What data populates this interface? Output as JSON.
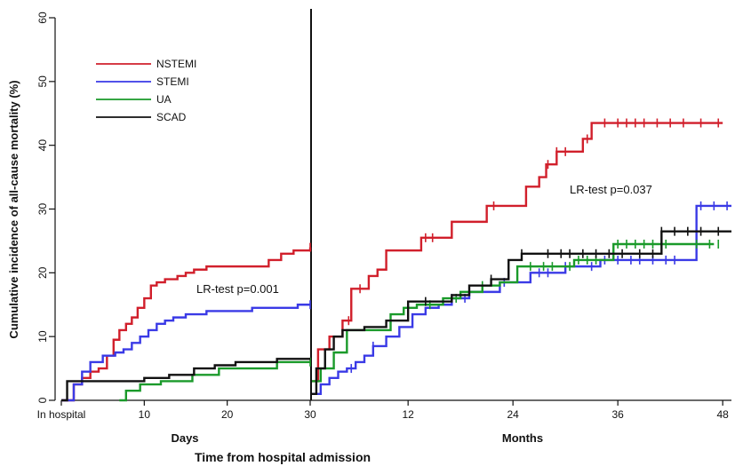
{
  "chart_data": {
    "type": "line",
    "ylabel": "Cumulative incidence of all-cause mortality (%)",
    "xlabel": "Time from hospital admission",
    "ylim": [
      0,
      60
    ],
    "y_ticks": [
      0,
      10,
      20,
      30,
      40,
      50,
      60
    ],
    "grid": false,
    "legend_position": "top-left",
    "left_panel": {
      "xlabel": "Days",
      "xlim": [
        0,
        30
      ],
      "x_ticks": [
        0,
        10,
        20,
        30
      ],
      "x_tick_labels": [
        "In hospital",
        "10",
        "20",
        "30"
      ],
      "annotation": "LR-test p=0.001"
    },
    "right_panel": {
      "xlabel": "Months",
      "xlim": [
        1,
        49
      ],
      "x_ticks": [
        12,
        24,
        36,
        48
      ],
      "x_tick_labels": [
        "12",
        "24",
        "36",
        "48"
      ],
      "annotation": "LR-test p=0.037"
    },
    "series": [
      {
        "name": "NSTEMI",
        "color": "#d11f2b",
        "left": {
          "x": [
            0,
            1.5,
            2.5,
            3.5,
            4.5,
            5.5,
            6.3,
            7.0,
            7.8,
            8.5,
            9.2,
            10.0,
            10.8,
            11.5,
            12.5,
            14.0,
            15.0,
            16.0,
            17.5,
            20.0,
            25.0,
            26.5,
            28.0,
            30.0
          ],
          "y": [
            0,
            2.5,
            3.5,
            4.5,
            5.0,
            7.0,
            9.5,
            11.0,
            12.0,
            13.0,
            14.5,
            16.0,
            18.0,
            18.5,
            19.0,
            19.5,
            20.0,
            20.5,
            21.0,
            21.0,
            22.0,
            23.0,
            23.5,
            24.0
          ],
          "censored_x": [
            30.0
          ]
        },
        "right": {
          "x": [
            1.0,
            1.7,
            3.0,
            4.5,
            5.5,
            6.0,
            7.5,
            8.5,
            9.5,
            10.5,
            12.0,
            13.5,
            15.5,
            17.0,
            19.0,
            21.0,
            23.0,
            25.5,
            27.0,
            27.8,
            29.0,
            30.5,
            32.0,
            33.0,
            48.0
          ],
          "y": [
            3.0,
            8.0,
            10.0,
            12.5,
            17.5,
            17.5,
            19.5,
            20.5,
            23.5,
            23.5,
            23.5,
            25.5,
            25.5,
            28.0,
            28.0,
            30.5,
            30.5,
            33.5,
            35.0,
            37.0,
            39.0,
            39.0,
            41.0,
            43.5,
            43.5
          ],
          "censored_x": [
            5.2,
            6.5,
            14.0,
            14.8,
            21.8,
            28.0,
            29.0,
            30.0,
            32.5,
            34.5,
            36.0,
            37.0,
            38.0,
            39.0,
            40.5,
            42.0,
            43.5,
            45.5,
            47.5
          ]
        }
      },
      {
        "name": "STEMI",
        "color": "#3a3ae6",
        "left": {
          "x": [
            0,
            1.5,
            2.5,
            3.5,
            5.0,
            6.5,
            7.5,
            8.5,
            9.5,
            10.5,
            11.5,
            12.5,
            13.5,
            15.0,
            17.5,
            20.5,
            23.0,
            26.0,
            28.5,
            30.0
          ],
          "y": [
            0,
            2.5,
            4.5,
            6.0,
            7.0,
            7.5,
            8.0,
            9.0,
            10.0,
            11.0,
            12.0,
            12.5,
            13.0,
            13.5,
            14.0,
            14.0,
            14.5,
            14.5,
            15.0,
            15.0
          ],
          "censored_x": [
            30.0
          ]
        },
        "right": {
          "x": [
            1.0,
            2.0,
            3.0,
            4.0,
            5.0,
            6.0,
            7.0,
            8.0,
            9.5,
            11.0,
            12.5,
            14.0,
            15.5,
            17.0,
            19.0,
            22.5,
            26.0,
            30.0,
            34.0,
            38.0,
            41.0,
            44.5,
            45.0,
            49.0
          ],
          "y": [
            1.0,
            2.5,
            3.5,
            4.5,
            5.0,
            6.0,
            7.0,
            8.5,
            10.0,
            11.5,
            13.5,
            14.5,
            15.0,
            16.0,
            17.0,
            18.5,
            20.0,
            21.0,
            22.0,
            22.0,
            22.0,
            22.0,
            30.5,
            30.5
          ],
          "censored_x": [
            5.5,
            8.0,
            17.0,
            18.5,
            23.0,
            27.0,
            28.0,
            30.0,
            33.0,
            34.5,
            36.0,
            37.5,
            38.5,
            40.0,
            41.5,
            42.5,
            45.5,
            47.0,
            48.5
          ]
        }
      },
      {
        "name": "UA",
        "color": "#1a9a2a",
        "left": {
          "x": [
            7.0,
            7.8,
            9.5,
            12.0,
            14.0,
            15.8,
            19.0,
            24.0,
            26.0,
            30.0
          ],
          "y": [
            0,
            1.5,
            2.5,
            3.0,
            3.0,
            4.0,
            5.0,
            5.0,
            6.0,
            6.0
          ],
          "censored_x": [
            30.0
          ]
        },
        "right": {
          "x": [
            1.0,
            2.0,
            3.5,
            5.0,
            7.5,
            10.0,
            11.5,
            13.0,
            16.0,
            18.0,
            20.5,
            22.5,
            24.5,
            26.0,
            28.0,
            31.0,
            35.5,
            47.0
          ],
          "y": [
            3.0,
            5.0,
            7.5,
            11.0,
            11.0,
            13.5,
            14.5,
            15.0,
            16.0,
            17.0,
            18.0,
            18.5,
            21.0,
            21.0,
            21.0,
            22.0,
            24.5,
            24.5
          ],
          "censored_x": [
            14.5,
            17.5,
            20.5,
            26.0,
            27.5,
            28.5,
            30.5,
            31.5,
            32.5,
            33.5,
            36.0,
            37.0,
            38.0,
            39.0,
            40.0,
            41.5,
            45.0,
            46.5,
            47.5
          ]
        }
      },
      {
        "name": "SCAD",
        "color": "#111111",
        "left": {
          "x": [
            0,
            0.7,
            8.5,
            10.0,
            13.0,
            16.0,
            18.5,
            21.0,
            26.0,
            30.0
          ],
          "y": [
            0,
            3.0,
            3.0,
            3.5,
            4.0,
            5.0,
            5.5,
            6.0,
            6.5,
            6.5
          ],
          "censored_x": []
        },
        "right": {
          "x": [
            1.0,
            1.5,
            2.5,
            3.5,
            4.5,
            7.0,
            9.5,
            12.0,
            17.0,
            19.0,
            21.5,
            23.5,
            25.0,
            30.5,
            41.0,
            49.0
          ],
          "y": [
            1.0,
            5.0,
            8.0,
            10.0,
            11.0,
            11.5,
            12.5,
            15.5,
            16.5,
            18.0,
            19.0,
            22.0,
            23.0,
            23.0,
            26.5,
            26.5
          ],
          "censored_x": [
            14.0,
            21.5,
            25.0,
            28.0,
            29.5,
            30.5,
            32.0,
            33.5,
            35.0,
            36.5,
            38.5,
            40.0,
            41.0,
            42.5,
            44.0,
            45.5,
            47.5
          ]
        }
      }
    ]
  }
}
